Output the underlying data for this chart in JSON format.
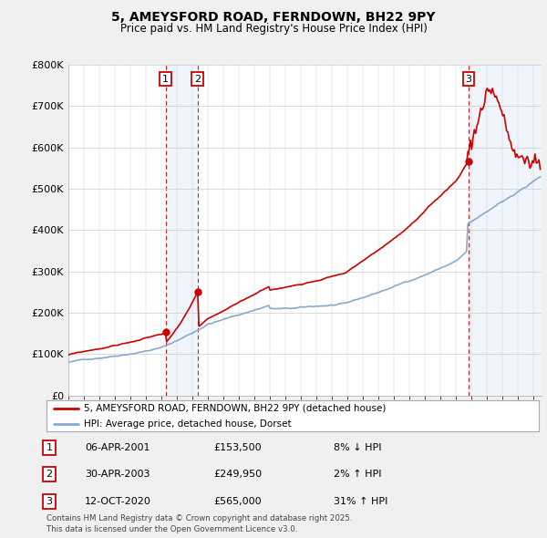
{
  "title": "5, AMEYSFORD ROAD, FERNDOWN, BH22 9PY",
  "subtitle": "Price paid vs. HM Land Registry's House Price Index (HPI)",
  "ylim": [
    0,
    800000
  ],
  "yticks": [
    0,
    100000,
    200000,
    300000,
    400000,
    500000,
    600000,
    700000,
    800000
  ],
  "ytick_labels": [
    "£0",
    "£100K",
    "£200K",
    "£300K",
    "£400K",
    "£500K",
    "£600K",
    "£700K",
    "£800K"
  ],
  "background_color": "#f0f0f0",
  "plot_bg_color": "#ffffff",
  "red_line_color": "#cc0000",
  "blue_line_color": "#88aacc",
  "vline_color": "#cc0000",
  "sale_dates": [
    2001.27,
    2003.33,
    2020.79
  ],
  "sale_prices": [
    153500,
    249950,
    565000
  ],
  "sale_labels": [
    "1",
    "2",
    "3"
  ],
  "legend_entries": [
    "5, AMEYSFORD ROAD, FERNDOWN, BH22 9PY (detached house)",
    "HPI: Average price, detached house, Dorset"
  ],
  "table_rows": [
    [
      "1",
      "06-APR-2001",
      "£153,500",
      "8% ↓ HPI"
    ],
    [
      "2",
      "30-APR-2003",
      "£249,950",
      "2% ↑ HPI"
    ],
    [
      "3",
      "12-OCT-2020",
      "£565,000",
      "31% ↑ HPI"
    ]
  ],
  "footnote": "Contains HM Land Registry data © Crown copyright and database right 2025.\nThis data is licensed under the Open Government Licence v3.0.",
  "xlim_start": 1995.0,
  "xlim_end": 2025.5
}
